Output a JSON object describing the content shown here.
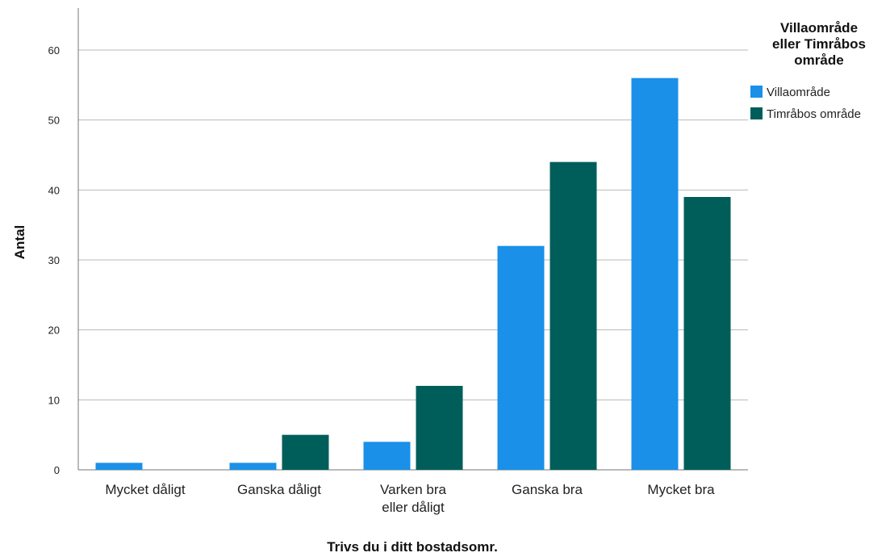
{
  "chart_data": {
    "type": "bar",
    "xlabel": "Trivs du i ditt bostadsomr.",
    "ylabel": "Antal",
    "categories": [
      [
        "Mycket dåligt"
      ],
      [
        "Ganska dåligt"
      ],
      [
        "Varken bra",
        "eller dåligt"
      ],
      [
        "Ganska bra"
      ],
      [
        "Mycket bra"
      ]
    ],
    "series": [
      {
        "name": "Villaområde",
        "color": "#1a90e8",
        "values": [
          1,
          1,
          4,
          32,
          56
        ]
      },
      {
        "name": "Timråbos område",
        "color": "#005e5a",
        "values": [
          0,
          5,
          12,
          44,
          39
        ]
      }
    ],
    "legend": {
      "title": [
        "Villaområde",
        "eller Timråbos",
        "område"
      ],
      "position": "top-right"
    },
    "ylim": [
      0,
      66
    ],
    "yticks": [
      0,
      10,
      20,
      30,
      40,
      50,
      60
    ],
    "grid": true
  }
}
